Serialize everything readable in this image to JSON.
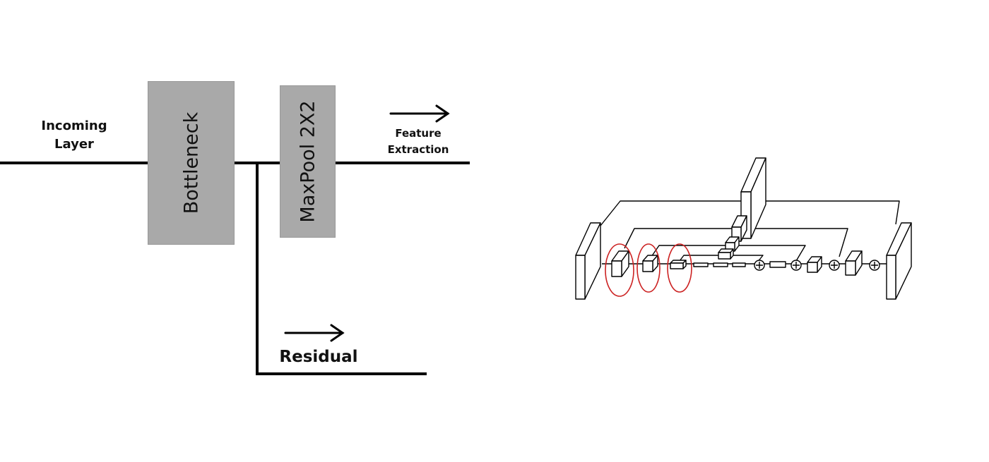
{
  "left_diagram": {
    "incoming_label_line1": "Incoming",
    "incoming_label_line2": "Layer",
    "bottleneck_label": "Bottleneck",
    "maxpool_label": "MaxPool 2X2",
    "feature_label_line1": "Feature",
    "feature_label_line2": "Extraction",
    "residual_label": "Residual",
    "block_color": "#a9a9a9"
  },
  "right_diagram": {
    "highlight_color": "#cc2222",
    "highlighted_blocks": 3,
    "adder_nodes": 4
  }
}
